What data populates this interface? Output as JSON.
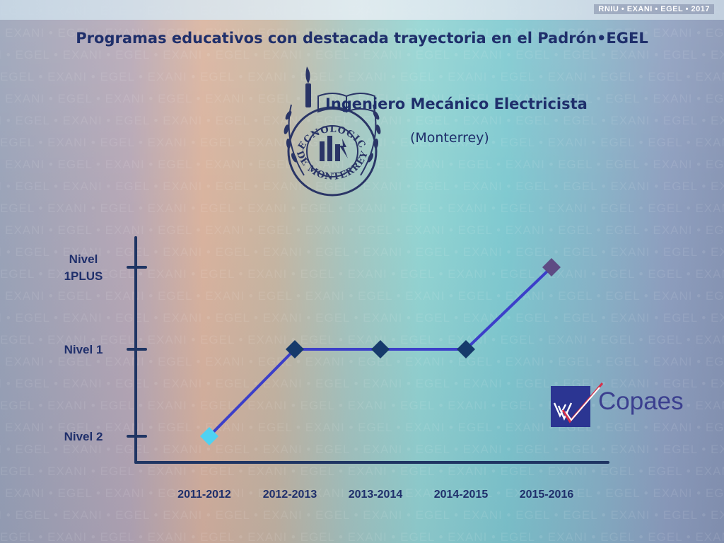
{
  "header": {
    "corner_label": "RNIU • EXANI • EGEL • 2017",
    "title": "Programas educativos con destacada trayectoria en el Padrón•EGEL",
    "program": "Ingeniero Mecánico Electricista",
    "campus": "(Monterrey)"
  },
  "logos": {
    "seal_top_text": "TECNOLOGICO",
    "seal_bottom_text": "DE MONTERREY",
    "copaes_text": "Copaes"
  },
  "watermark_text": "EGEL • EXANI • EGEL • EXANI • EGEL • EXANI • EGEL • EXANI • EGEL • EXANI • EGEL • EXANI • EGEL •",
  "colors": {
    "axis": "#1f3563",
    "line": "#3c3fc9",
    "marker_nivel2": "#4fd2f2",
    "marker_nivel1": "#163a6b",
    "marker_1plus": "#5e4b84",
    "text": "#1f2f6b"
  },
  "chart_data": {
    "type": "line",
    "categories": [
      "2011-2012",
      "2012-2013",
      "2013-2014",
      "2014-2015",
      "2015-2016"
    ],
    "y_levels": [
      "Nivel 2",
      "Nivel 1",
      "Nivel 1PLUS"
    ],
    "y_tick_labels": [
      [
        "Nivel 2"
      ],
      [
        "Nivel 1"
      ],
      [
        "Nivel",
        "1PLUS"
      ]
    ],
    "series": [
      {
        "values": [
          "Nivel 2",
          "Nivel 1",
          "Nivel 1",
          "Nivel 1",
          "Nivel 1PLUS"
        ]
      }
    ],
    "title": "",
    "xlabel": "",
    "ylabel": "",
    "grid": false,
    "legend": "none"
  }
}
